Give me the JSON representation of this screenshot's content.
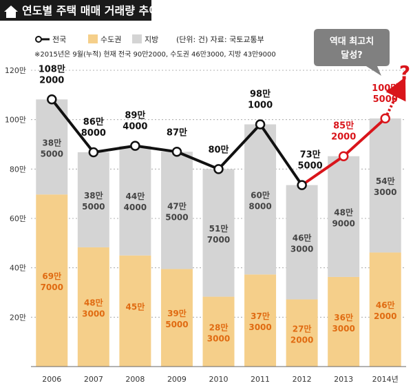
{
  "header": {
    "title": "연도별 주택 매매 거래량 추이",
    "house_icon": "house-icon"
  },
  "legend": {
    "national": "전국",
    "capital": "수도권",
    "regional": "지방",
    "source": "(단위: 건) 자료: 국토교통부"
  },
  "note": "※2015년은 9월(누적) 현재 전국 90만2000, 수도권 46만3000, 지방 43만9000",
  "callout": {
    "text_line1": "역대 최고치",
    "text_line2": "달성?",
    "question_mark": "?"
  },
  "colors": {
    "capital": "#f5cf8a",
    "regional": "#d4d4d4",
    "national_line": "#111111",
    "projection_line": "#d9151b",
    "capital_text": "#e06b12",
    "regional_text": "#444444",
    "header_bg": "#1a1a1a",
    "callout_bg": "#808080"
  },
  "chart_data": {
    "type": "bar",
    "stacked": true,
    "categories": [
      "2006",
      "2007",
      "2008",
      "2009",
      "2010",
      "2011",
      "2012",
      "2013",
      "2014년"
    ],
    "series": [
      {
        "name": "수도권",
        "values": [
          697000,
          483000,
          450000,
          395000,
          283000,
          373000,
          272000,
          363000,
          462000
        ],
        "labels": [
          [
            "69만",
            "7000"
          ],
          [
            "48만",
            "3000"
          ],
          [
            "45만",
            ""
          ],
          [
            "39만",
            "5000"
          ],
          [
            "28만",
            "3000"
          ],
          [
            "37만",
            "3000"
          ],
          [
            "27만",
            "2000"
          ],
          [
            "36만",
            "3000"
          ],
          [
            "46만",
            "2000"
          ]
        ]
      },
      {
        "name": "지방",
        "values": [
          385000,
          385000,
          444000,
          475000,
          517000,
          608000,
          463000,
          489000,
          543000
        ],
        "labels": [
          [
            "38만",
            "5000"
          ],
          [
            "38만",
            "5000"
          ],
          [
            "44만",
            "4000"
          ],
          [
            "47만",
            "5000"
          ],
          [
            "51만",
            "7000"
          ],
          [
            "60만",
            "8000"
          ],
          [
            "46만",
            "3000"
          ],
          [
            "48만",
            "9000"
          ],
          [
            "54만",
            "3000"
          ]
        ]
      },
      {
        "name": "전국",
        "type": "line",
        "values": [
          1082000,
          868000,
          894000,
          870000,
          800000,
          981000,
          735000,
          852000,
          1005000
        ],
        "labels": [
          [
            "108만",
            "2000"
          ],
          [
            "86만",
            "8000"
          ],
          [
            "89만",
            "4000"
          ],
          [
            "87만",
            ""
          ],
          [
            "80만",
            ""
          ],
          [
            "98만",
            "1000"
          ],
          [
            "73만",
            "5000"
          ],
          [
            "85만",
            "2000"
          ],
          [
            "100만",
            "5000"
          ]
        ]
      }
    ],
    "y_ticks": [
      "20만",
      "40만",
      "60만",
      "80만",
      "100만",
      "120만"
    ],
    "y_tick_values": [
      200000,
      400000,
      600000,
      800000,
      1000000,
      1200000
    ],
    "ylim": [
      0,
      1200000
    ],
    "grid": true,
    "legend_position": "top-left"
  }
}
